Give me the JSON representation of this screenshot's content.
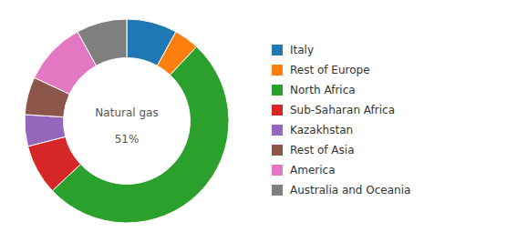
{
  "chart_data": {
    "type": "pie",
    "categories": [
      "Italy",
      "Rest of Europe",
      "North Africa",
      "Sub-Saharan Africa",
      "Kazakhstan",
      "Rest of Asia",
      "America",
      "Australia and Oceania"
    ],
    "values": [
      8,
      4,
      51,
      8,
      5,
      6,
      10,
      8
    ],
    "annotations": [
      "Natural gas",
      "51%"
    ],
    "legend": "right"
  }
}
